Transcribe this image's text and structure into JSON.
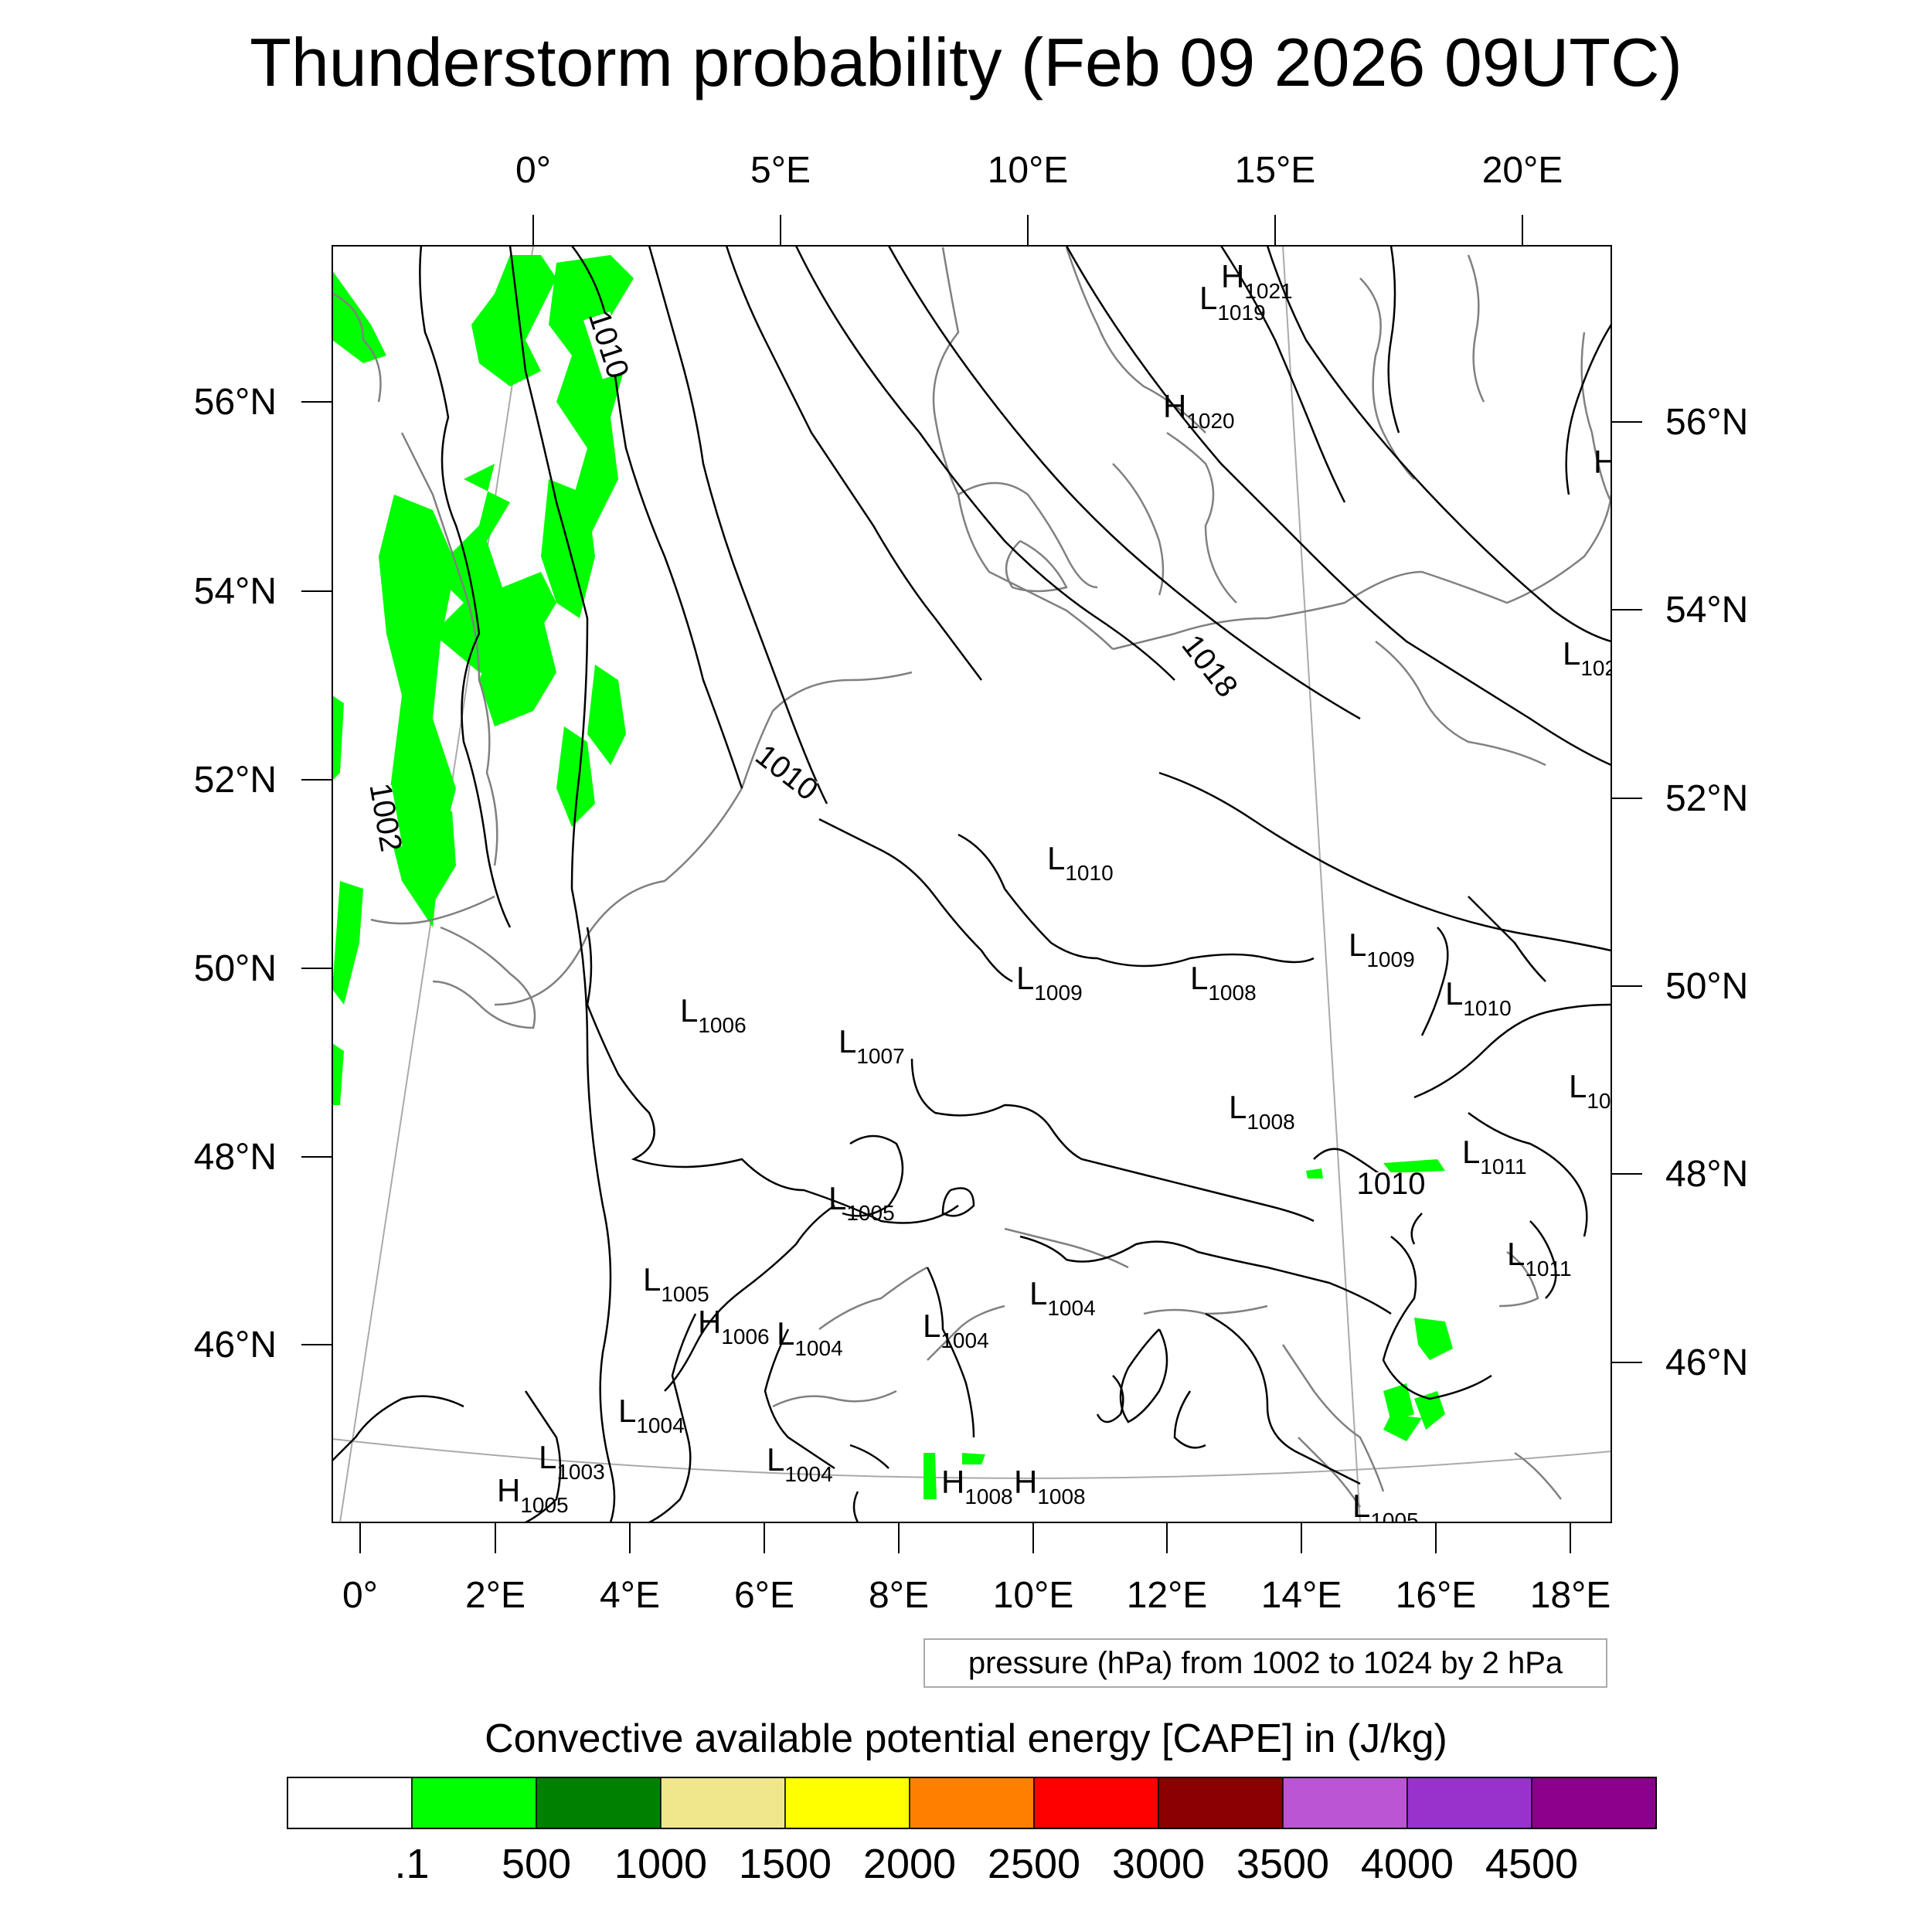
{
  "title": "Thunderstorm probability (Feb 09 2026 09UTC)",
  "top_lon_labels": [
    "0°",
    "5°E",
    "10°E",
    "15°E",
    "20°E"
  ],
  "bottom_lon_labels": [
    "0°",
    "2°E",
    "4°E",
    "6°E",
    "8°E",
    "10°E",
    "12°E",
    "14°E",
    "16°E",
    "18°E"
  ],
  "left_lat_labels": [
    "56°N",
    "54°N",
    "52°N",
    "50°N",
    "48°N",
    "46°N"
  ],
  "right_lat_labels": [
    "56°N",
    "54°N",
    "52°N",
    "50°N",
    "48°N",
    "46°N"
  ],
  "contour_info": "pressure (hPa) from 1002 to 1024 by 2 hPa",
  "colorbar": {
    "title": "Convective available potential energy [CAPE] in (J/kg)",
    "colors": [
      "#ffffff",
      "#00ff00",
      "#008000",
      "#f0e68c",
      "#ffff00",
      "#ff8000",
      "#ff0000",
      "#8b0000",
      "#ba55d3",
      "#9932cc",
      "#8b008b"
    ],
    "labels": [
      ".1",
      "500",
      "1000",
      "1500",
      "2000",
      "2500",
      "3000",
      "3500",
      "4000",
      "4500"
    ]
  },
  "cape_color": "#00ff00",
  "coast_color": "#808080",
  "isobar_labels": [
    "1010",
    "1002",
    "1010",
    "1018",
    "1010"
  ],
  "pressure_centers": [
    {
      "t": "H",
      "v": "1021"
    },
    {
      "t": "L",
      "v": "1019"
    },
    {
      "t": "H",
      "v": "1020"
    },
    {
      "t": "H",
      "v": ""
    },
    {
      "t": "L",
      "v": "102"
    },
    {
      "t": "L",
      "v": "1010"
    },
    {
      "t": "L",
      "v": "1009"
    },
    {
      "t": "L",
      "v": "1009"
    },
    {
      "t": "L",
      "v": "1008"
    },
    {
      "t": "L",
      "v": "1010"
    },
    {
      "t": "L",
      "v": "1006"
    },
    {
      "t": "L",
      "v": "1007"
    },
    {
      "t": "L",
      "v": "10"
    },
    {
      "t": "L",
      "v": "1008"
    },
    {
      "t": "L",
      "v": "1011"
    },
    {
      "t": "L",
      "v": "1005"
    },
    {
      "t": "L",
      "v": "1011"
    },
    {
      "t": "L",
      "v": "1005"
    },
    {
      "t": "L",
      "v": "1004"
    },
    {
      "t": "H",
      "v": "1006"
    },
    {
      "t": "L",
      "v": "1004"
    },
    {
      "t": "L",
      "v": "1004"
    },
    {
      "t": "L",
      "v": "1004"
    },
    {
      "t": "L",
      "v": "1003"
    },
    {
      "t": "H",
      "v": "1005"
    },
    {
      "t": "L",
      "v": "1004"
    },
    {
      "t": "H",
      "v": "1008"
    },
    {
      "t": "H",
      "v": "1008"
    },
    {
      "t": "L",
      "v": "1005"
    }
  ]
}
